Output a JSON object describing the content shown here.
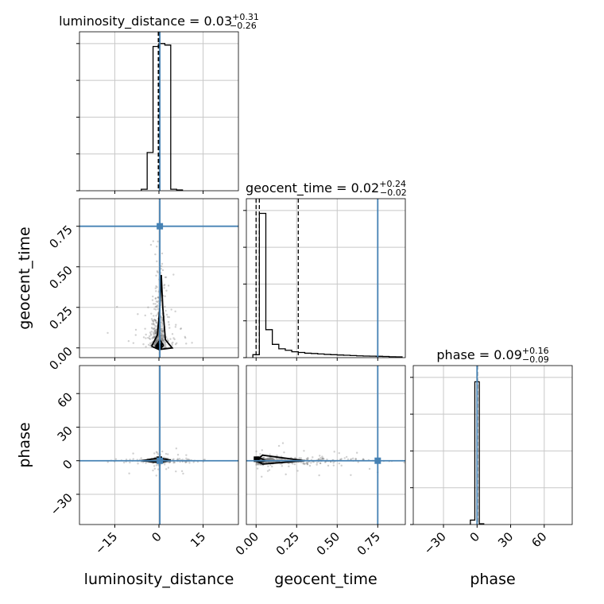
{
  "chart_data": {
    "type": "corner",
    "parameters": [
      "luminosity_distance",
      "geocent_time",
      "phase"
    ],
    "axis_labels": [
      "luminosity_distance",
      "geocent_time",
      "phase"
    ],
    "ranges": {
      "luminosity_distance": [
        -27,
        27
      ],
      "geocent_time": [
        -0.06,
        0.92
      ],
      "phase": [
        -57,
        85
      ]
    },
    "ticks": {
      "luminosity_distance": [
        -15,
        0,
        15
      ],
      "geocent_time": [
        0.0,
        0.25,
        0.5,
        0.75
      ],
      "phase": [
        -30,
        0,
        30,
        60
      ]
    },
    "tick_labels": {
      "luminosity_distance": [
        "−15",
        "0",
        "15"
      ],
      "geocent_time": [
        "0.00",
        "0.25",
        "0.50",
        "0.75"
      ],
      "phase": [
        "−30",
        "0",
        "30",
        "60"
      ]
    },
    "titles": [
      {
        "param": "luminosity_distance",
        "prefix": "luminosity_distance = 0.03",
        "plus": "+0.31",
        "minus": "−0.26"
      },
      {
        "param": "geocent_time",
        "prefix": "geocent_time = 0.02",
        "plus": "+0.24",
        "minus": "−0.02"
      },
      {
        "param": "phase",
        "prefix": "phase = 0.09",
        "plus": "+0.16",
        "minus": "−0.09"
      }
    ],
    "truths": {
      "luminosity_distance": 0.3,
      "geocent_time": 0.75,
      "phase": 0.0
    },
    "truth_color": "#4682b4",
    "quantiles": {
      "luminosity_distance": [
        -0.23,
        0.03,
        0.34
      ],
      "geocent_time": [
        0.0,
        0.02,
        0.26
      ],
      "phase": [
        0.0,
        0.09,
        0.25
      ]
    },
    "histograms": {
      "luminosity_distance": {
        "edges": [
          -6,
          -4,
          -2,
          0,
          2,
          4,
          6,
          8
        ],
        "counts": [
          0.01,
          0.26,
          0.98,
          1.0,
          0.99,
          0.01,
          0.005
        ]
      },
      "geocent_time": {
        "edges": [
          -0.02,
          0.02,
          0.06,
          0.1,
          0.14,
          0.18,
          0.22,
          0.26,
          0.3,
          0.34,
          0.38,
          0.42,
          0.46,
          0.5,
          0.54,
          0.58,
          0.62,
          0.66,
          0.7,
          0.74,
          0.78,
          0.82,
          0.86,
          0.9
        ],
        "counts": [
          0.02,
          0.98,
          0.19,
          0.09,
          0.06,
          0.05,
          0.04,
          0.035,
          0.03,
          0.028,
          0.025,
          0.022,
          0.02,
          0.018,
          0.016,
          0.014,
          0.012,
          0.011,
          0.01,
          0.009,
          0.008,
          0.006,
          0.005
        ]
      },
      "phase": {
        "edges": [
          -6,
          -2,
          2,
          6
        ],
        "counts": [
          0.03,
          0.97,
          0.005
        ]
      }
    },
    "hist_ymax": 1.08,
    "contour_color": "#000000",
    "scatter_color": "#777777"
  }
}
